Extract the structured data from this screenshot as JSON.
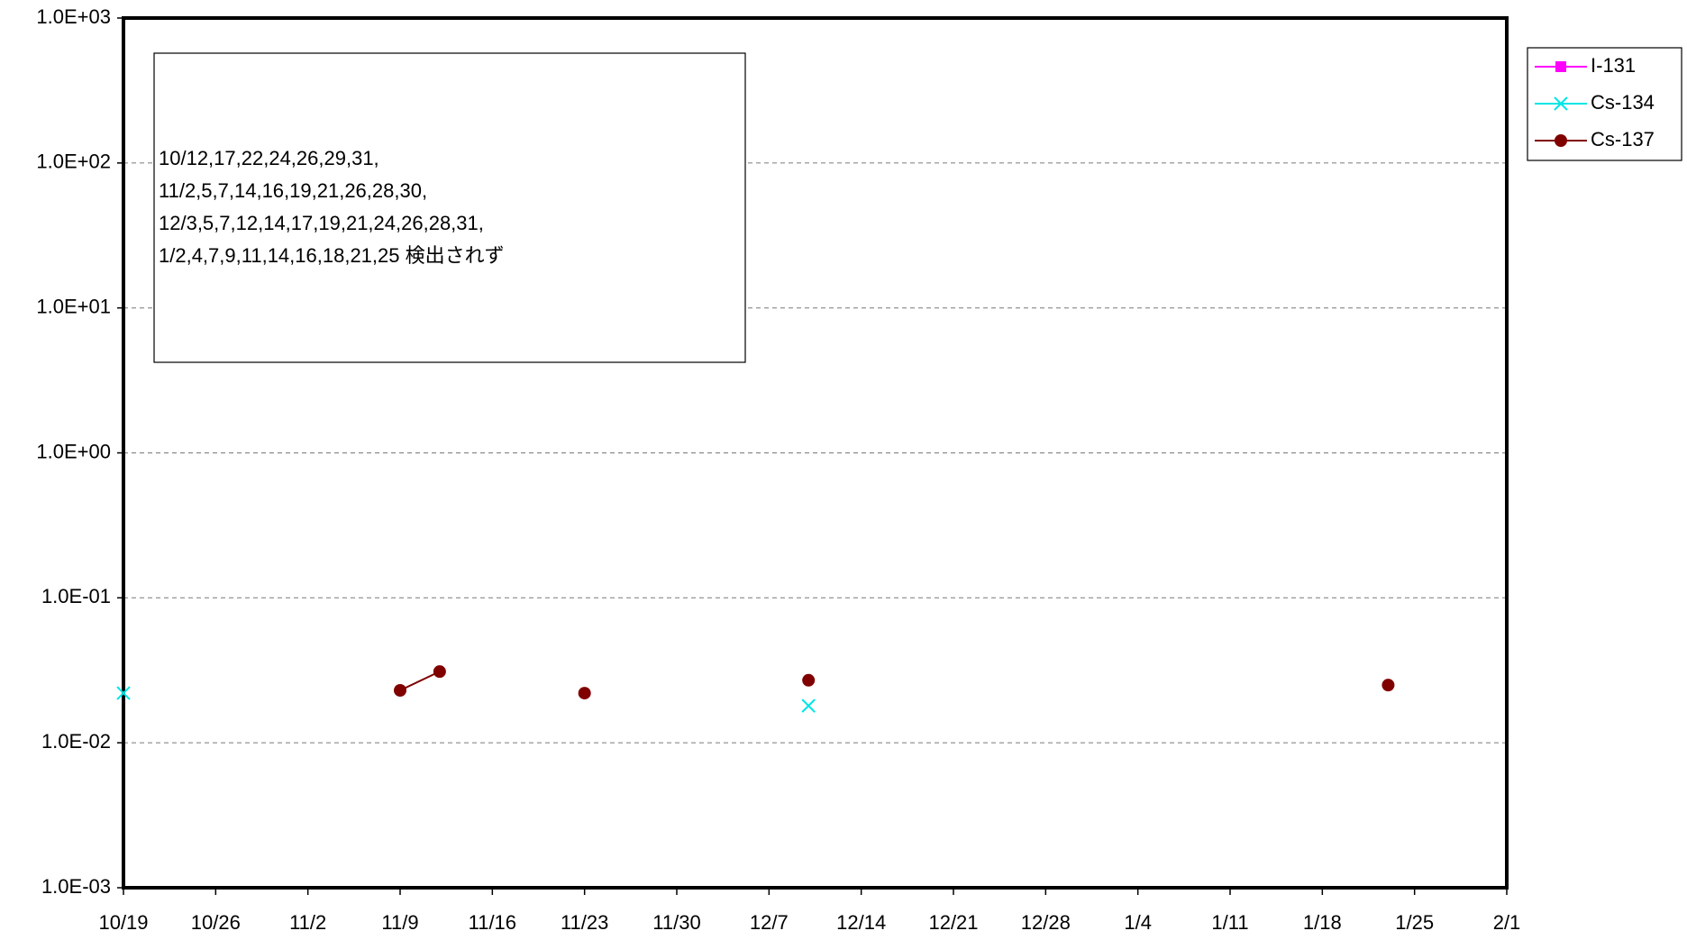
{
  "chart_data": {
    "type": "line",
    "log_y": true,
    "grid": true,
    "legend": "right",
    "annotation": [
      "10/12,17,22,24,26,29,31,",
      "11/2,5,7,14,16,19,21,26,28,30,",
      "12/3,5,7,12,14,17,19,21,24,26,28,31,",
      "1/2,4,7,9,11,14,16,18,21,25 検出されず"
    ],
    "x": [
      "10/19",
      "11/9",
      "11/12",
      "11/14",
      "11/23",
      "11/26",
      "12/10",
      "12/12",
      "1/23"
    ],
    "xlim": [
      "10/19",
      "2/1"
    ],
    "xticks": [
      "10/19",
      "10/26",
      "11/2",
      "11/9",
      "11/16",
      "11/23",
      "11/30",
      "12/7",
      "12/14",
      "12/21",
      "12/28",
      "1/4",
      "1/11",
      "1/18",
      "1/25",
      "2/1"
    ],
    "ylim": [
      0.001,
      1000
    ],
    "yticks": [
      {
        "value": 0.001,
        "label": "1.0E-03"
      },
      {
        "value": 0.01,
        "label": "1.0E-02"
      },
      {
        "value": 0.1,
        "label": "1.0E-01"
      },
      {
        "value": 1,
        "label": "1.0E+00"
      },
      {
        "value": 10,
        "label": "1.0E+01"
      },
      {
        "value": 100,
        "label": "1.0E+02"
      },
      {
        "value": 1000,
        "label": "1.0E+03"
      }
    ],
    "series": [
      {
        "name": "I-131",
        "color": "#ff00ff",
        "marker": "square",
        "values": [
          null,
          null,
          null,
          null,
          null,
          null,
          null,
          null,
          null
        ]
      },
      {
        "name": "Cs-134",
        "color": "#00e5e5",
        "marker": "x",
        "values": [
          0.022,
          null,
          null,
          null,
          null,
          null,
          0.018,
          null,
          null
        ]
      },
      {
        "name": "Cs-137",
        "color": "#800000",
        "marker": "circle",
        "values": [
          null,
          0.023,
          0.031,
          null,
          0.022,
          null,
          0.027,
          null,
          0.025
        ]
      }
    ]
  }
}
